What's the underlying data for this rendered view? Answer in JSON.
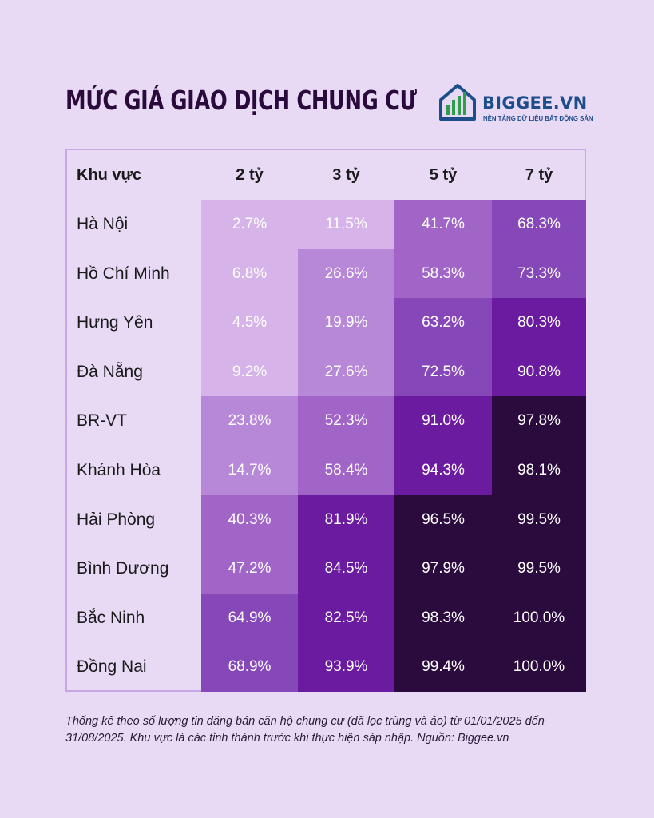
{
  "title": "MỨC GIÁ GIAO DỊCH CHUNG CƯ",
  "logo": {
    "name": "BIGGEE.VN",
    "tagline": "NỀN TẢNG DỮ LIỆU BẤT ĐỘNG SẢN"
  },
  "colors": {
    "background": "#e8daf5",
    "scale": [
      "#d6b4ea",
      "#b787d8",
      "#a165c8",
      "#8647b8",
      "#6a1ba0",
      "#2b0a3e"
    ]
  },
  "chart_data": {
    "type": "heatmap",
    "title": "MỨC GIÁ GIAO DỊCH CHUNG CƯ",
    "row_header": "Khu vực",
    "columns": [
      "2 tỷ",
      "3 tỷ",
      "5 tỷ",
      "7 tỷ"
    ],
    "rows": [
      "Hà Nội",
      "Hồ Chí Minh",
      "Hưng Yên",
      "Đà Nẵng",
      "BR-VT",
      "Khánh Hòa",
      "Hải Phòng",
      "Bình Dương",
      "Bắc Ninh",
      "Đồng Nai"
    ],
    "values": [
      [
        2.7,
        11.5,
        41.7,
        68.3
      ],
      [
        6.8,
        26.6,
        58.3,
        73.3
      ],
      [
        4.5,
        19.9,
        63.2,
        80.3
      ],
      [
        9.2,
        27.6,
        72.5,
        90.8
      ],
      [
        23.8,
        52.3,
        91.0,
        97.8
      ],
      [
        14.7,
        58.4,
        94.3,
        98.1
      ],
      [
        40.3,
        81.9,
        96.5,
        99.5
      ],
      [
        47.2,
        84.5,
        97.9,
        99.5
      ],
      [
        64.9,
        82.5,
        98.3,
        100.0
      ],
      [
        68.9,
        93.9,
        99.4,
        100.0
      ]
    ],
    "unit": "%"
  },
  "footnote": "Thống kê theo số lượng tin đăng bán căn hộ chung cư (đã lọc trùng và ảo) từ 01/01/2025 đến 31/08/2025. Khu vực là các tỉnh thành trước khi thực hiện sáp nhập. Nguồn: Biggee.vn"
}
